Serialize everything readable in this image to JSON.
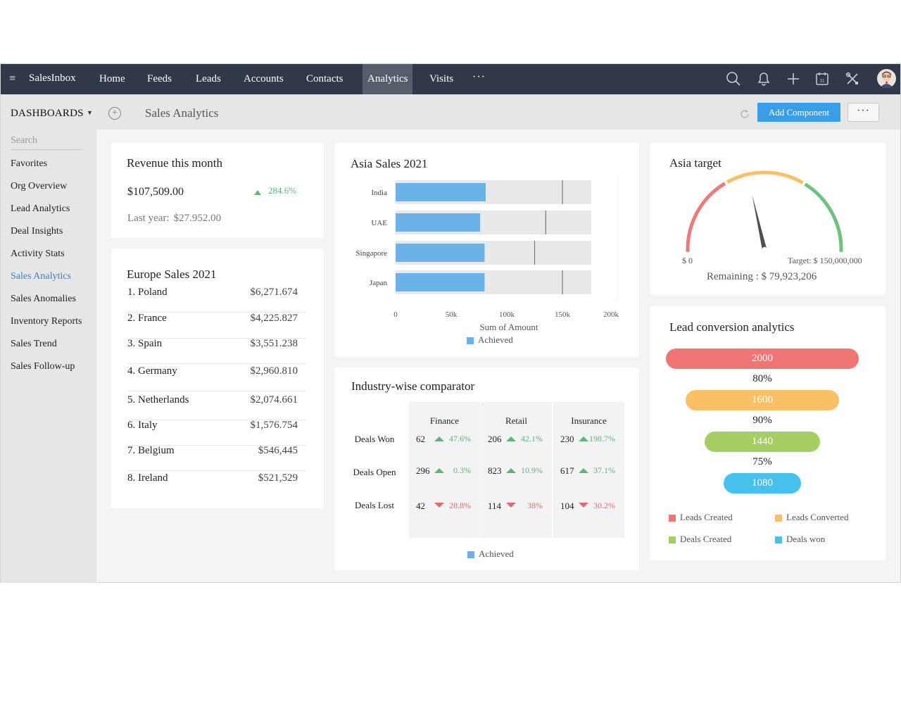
{
  "nav": {
    "brand": "SalesInbox",
    "items": [
      "Home",
      "Feeds",
      "Leads",
      "Accounts",
      "Contacts",
      "Analytics",
      "Visits"
    ],
    "active": "Analytics",
    "more": "···"
  },
  "subheader": {
    "dashboards_label": "DASHBOARDS",
    "page_title": "Sales Analytics",
    "add_component": "Add Component",
    "more": "···"
  },
  "sidebar": {
    "search_placeholder": "Search",
    "items": [
      "Favorites",
      "Org Overview",
      "Lead Analytics",
      "Deal Insights",
      "Activity Stats",
      "Sales Analytics",
      "Sales Anomalies",
      "Inventory Reports",
      "Sales Trend",
      "Sales Follow-up"
    ],
    "active": "Sales Analytics"
  },
  "revenue": {
    "title": "Revenue this month",
    "amount": "$107,509.00",
    "change": "284.6%",
    "last_year_label": "Last year:",
    "last_year_value": "$27.952.00"
  },
  "europe": {
    "title": "Europe Sales 2021",
    "rows": [
      {
        "name": "1. Poland",
        "value": "$6,271.674"
      },
      {
        "name": "2. France",
        "value": "$4,225.827"
      },
      {
        "name": "3. Spain",
        "value": "$3,551.238"
      },
      {
        "name": "4. Germany",
        "value": "$2,960.810"
      },
      {
        "name": "5. Netherlands",
        "value": "$2,074.661"
      },
      {
        "name": "6. Italy",
        "value": "$1,576.754"
      },
      {
        "name": "7. Belgium",
        "value": "$546,445"
      },
      {
        "name": "8. Ireland",
        "value": "$521,529"
      }
    ]
  },
  "asia_sales": {
    "title": "Asia Sales 2021",
    "xlabel": "Sum of Amount",
    "legend": "Achieved",
    "ticks": [
      "0",
      "50k",
      "100k",
      "150k",
      "200k"
    ]
  },
  "chart_data": {
    "type": "bar",
    "title": "Asia Sales 2021",
    "categories": [
      "India",
      "UAE",
      "Singapore",
      "Japan"
    ],
    "series": [
      {
        "name": "Achieved",
        "values": [
          81000,
          76000,
          80000,
          80000
        ]
      }
    ],
    "targets": [
      150000,
      135000,
      125000,
      150000
    ],
    "background_max": 176000,
    "xlim": [
      0,
      200000
    ],
    "xlabel": "Sum of Amount",
    "ylabel": "",
    "legend": "bottom"
  },
  "asia_target": {
    "title": "Asia target",
    "min_label": "$ 0",
    "target_label": "Target: $ 150,000,000",
    "remaining": "Remaining : $ 79,923,206",
    "achieved_fraction": 0.467
  },
  "industry": {
    "title": "Industry-wise comparator",
    "columns": [
      "Finance",
      "Retail",
      "Insurance"
    ],
    "rows": [
      {
        "label": "Deals Won",
        "cells": [
          {
            "v": "62",
            "p": "47.6%",
            "up": true
          },
          {
            "v": "206",
            "p": "42.1%",
            "up": true
          },
          {
            "v": "230",
            "p": "198.7%",
            "up": true
          }
        ]
      },
      {
        "label": "Deals Open",
        "cells": [
          {
            "v": "296",
            "p": "0.3%",
            "up": true
          },
          {
            "v": "823",
            "p": "10.9%",
            "up": true
          },
          {
            "v": "617",
            "p": "37.1%",
            "up": true
          }
        ]
      },
      {
        "label": "Deals Lost",
        "cells": [
          {
            "v": "42",
            "p": "28.8%",
            "up": false
          },
          {
            "v": "114",
            "p": "38%",
            "up": false
          },
          {
            "v": "104",
            "p": "30.2%",
            "up": false
          }
        ]
      }
    ],
    "legend": "Achieved"
  },
  "funnel": {
    "title": "Lead conversion analytics",
    "stages": [
      {
        "value": "2000",
        "color": "#f07575"
      },
      {
        "value": "1600",
        "color": "#fbc065"
      },
      {
        "value": "1440",
        "color": "#a6cf63"
      },
      {
        "value": "1080",
        "color": "#45c1ec"
      }
    ],
    "rates": [
      "80%",
      "90%",
      "75%"
    ],
    "legend": [
      {
        "label": "Leads Created",
        "color": "#f07575"
      },
      {
        "label": "Leads Converted",
        "color": "#fbc065"
      },
      {
        "label": "Deals Created",
        "color": "#a6cf63"
      },
      {
        "label": "Deals won",
        "color": "#45c1ec"
      }
    ]
  },
  "colors": {
    "nav": "#313849",
    "accent": "#3a9ee6",
    "bar": "#6bb2e9",
    "up": "#5fb576",
    "down": "#e36a6a"
  }
}
